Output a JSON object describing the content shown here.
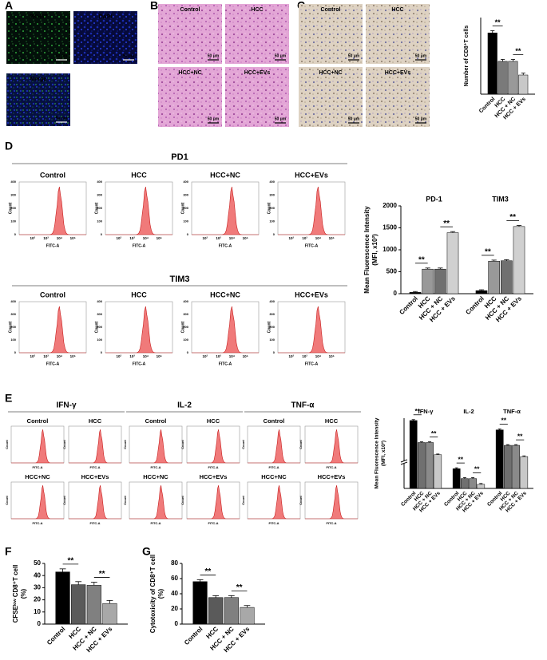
{
  "panel_labels": [
    "A",
    "B",
    "C",
    "D",
    "E",
    "F",
    "G"
  ],
  "panel_a": {
    "images": [
      "PKH67",
      "DAPI",
      "Merge"
    ],
    "scale": "50 μm"
  },
  "panel_b": {
    "images": [
      "Control",
      "HCC",
      "HCC+NC",
      "HCC+EVs"
    ],
    "scale": "50 μm"
  },
  "panel_c": {
    "images": [
      "Control",
      "HCC",
      "HCC+NC",
      "HCC+EVs"
    ],
    "scale": "50 μm"
  },
  "panel_d": {
    "rows": [
      "PD1",
      "TIM3"
    ],
    "groups": [
      "Control",
      "HCC",
      "HCC+NC",
      "HCC+EVs"
    ],
    "y_axis": "Count",
    "x_axis": "FITC-A",
    "x_ticks": [
      "10²",
      "10³",
      "10⁴",
      "10⁵"
    ],
    "y_ticks": [
      "0",
      "100",
      "200",
      "300",
      "400"
    ]
  },
  "panel_e": {
    "markers": [
      "IFN-γ",
      "IL-2",
      "TNF-α"
    ],
    "groups": [
      "Control",
      "HCC",
      "HCC+NC",
      "HCC+EVs"
    ],
    "y_axis": "Count",
    "x_axis": "FITC-A"
  },
  "chart_data": [
    {
      "type": "bar",
      "y_label": [
        "Number of CD8⁺T cells"
      ],
      "categories": [
        "Control",
        "HCC",
        "HCC + NC",
        "HCC + EVs"
      ],
      "colors": [
        "#000000",
        "#7a7a7a",
        "#999999",
        "#c8c8c8"
      ],
      "values": [
        11200,
        6000,
        6000,
        3500
      ],
      "errors": [
        400,
        350,
        350,
        350
      ],
      "annotations": [
        "**",
        "**"
      ],
      "ylim": [
        0,
        14000
      ]
    },
    {
      "type": "bar",
      "y_label": [
        "Mean Fluorescence Intensity",
        "(MFI, x10²)"
      ],
      "categories": [
        "Control",
        "HCC",
        "HCC + NC",
        "HCC + EVs"
      ],
      "colors": [
        "#000000",
        "#999999",
        "#707070",
        "#d0d0d0"
      ],
      "series": [
        {
          "name": "PD-1",
          "values": [
            30,
            560,
            560,
            1390
          ],
          "errors": [
            20,
            25,
            25,
            25
          ],
          "annotations": [
            "**",
            "**"
          ]
        },
        {
          "name": "TIM3",
          "values": [
            70,
            740,
            750,
            1530
          ],
          "errors": [
            20,
            25,
            25,
            25
          ],
          "annotations": [
            "**",
            "**"
          ]
        }
      ],
      "ylim": [
        0,
        2000
      ],
      "yticks": [
        0,
        500,
        1000,
        1500,
        2000
      ]
    },
    {
      "type": "bar",
      "y_label": [
        "Mean Fluorescence Intensity",
        "(MFI, x10²)"
      ],
      "categories": [
        "Control",
        "HCC",
        "HCC + NC",
        "HCC + EVs"
      ],
      "colors": [
        "#000000",
        "#707070",
        "#8a8a8a",
        "#c8c8c8"
      ],
      "series": [
        {
          "name": "IFN-γ",
          "values": [
            1250,
            780,
            780,
            520
          ],
          "errors": [
            20,
            15,
            15,
            15
          ],
          "annotations": [
            "**",
            "**"
          ]
        },
        {
          "name": "IL-2",
          "values": [
            120,
            60,
            60,
            25
          ],
          "errors": [
            6,
            6,
            6,
            5
          ],
          "annotations": [
            "**",
            "**"
          ]
        },
        {
          "name": "TNF-α",
          "values": [
            1050,
            720,
            720,
            480
          ],
          "errors": [
            20,
            15,
            15,
            15
          ],
          "annotations": [
            "**",
            "**"
          ]
        }
      ],
      "ylim": [
        0,
        1300
      ],
      "ybreak": [
        150,
        400
      ]
    },
    {
      "type": "bar",
      "y_label": [
        "CFSEˡᵒʷ CD8⁺T cell",
        "(%)"
      ],
      "categories": [
        "Control",
        "HCC",
        "HCC + NC",
        "HCC + EVs"
      ],
      "colors": [
        "#000000",
        "#5a5a5a",
        "#808080",
        "#a8a8a8"
      ],
      "values": [
        43,
        32.5,
        32,
        17
      ],
      "errors": [
        2.5,
        2.5,
        2.5,
        2.5
      ],
      "annotations": [
        "**",
        "**"
      ],
      "ylim": [
        0,
        50
      ],
      "yticks": [
        0,
        10,
        20,
        30,
        40,
        50
      ]
    },
    {
      "type": "bar",
      "y_label": [
        "Cytotoxicity of CD8⁺T cell",
        "(%)"
      ],
      "categories": [
        "Control",
        "HCC",
        "HCC + NC",
        "HCC + EVs"
      ],
      "colors": [
        "#000000",
        "#5a5a5a",
        "#808080",
        "#a8a8a8"
      ],
      "values": [
        56,
        35,
        35,
        22
      ],
      "errors": [
        2.5,
        2.5,
        2.5,
        2.5
      ],
      "annotations": [
        "**",
        "**"
      ],
      "ylim": [
        0,
        80
      ],
      "yticks": [
        0,
        20,
        40,
        60,
        80
      ]
    }
  ]
}
